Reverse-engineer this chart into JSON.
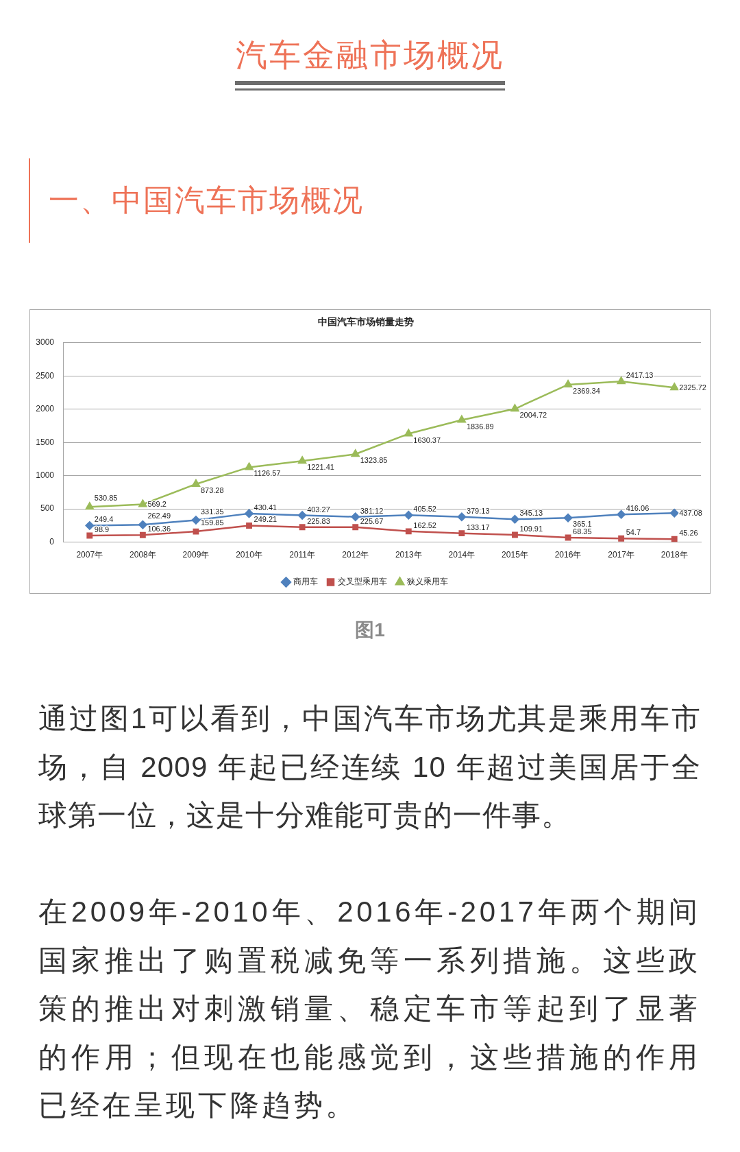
{
  "chart_data": {
    "type": "line",
    "title": "中国汽车市场销量走势",
    "categories": [
      "2007年",
      "2008年",
      "2009年",
      "2010年",
      "2011年",
      "2012年",
      "2013年",
      "2014年",
      "2015年",
      "2016年",
      "2017年",
      "2018年"
    ],
    "series": [
      {
        "name": "商用车",
        "color": "#4f81bd",
        "marker": "diamond",
        "values": [
          249.4,
          262.49,
          331.35,
          430.41,
          403.27,
          381.12,
          405.52,
          379.13,
          345.13,
          365.1,
          416.06,
          437.08
        ]
      },
      {
        "name": "交叉型乘用车",
        "color": "#c0504d",
        "marker": "square",
        "values": [
          98.9,
          106.36,
          159.85,
          249.21,
          225.83,
          225.67,
          162.52,
          133.17,
          109.91,
          68.35,
          54.7,
          45.26
        ]
      },
      {
        "name": "狭义乘用车",
        "color": "#9bbb59",
        "marker": "triangle",
        "values": [
          530.85,
          569.2,
          873.28,
          1126.57,
          1221.41,
          1323.85,
          1630.37,
          1836.89,
          2004.72,
          2369.34,
          2417.13,
          2325.72
        ]
      }
    ],
    "ylim": [
      0,
      3000
    ],
    "yticks": [
      0,
      500,
      1000,
      1500,
      2000,
      2500,
      3000
    ],
    "grid": "y",
    "legend": "bottom",
    "data_labels": true,
    "annotations": [
      "汽车金融市场概况",
      "一、中国汽车市场概况",
      "图1",
      "通过图1可以看到，中国汽车市场尤其是乘用车市场，自 2009 年起已经连续 10 年超过美国居于全球第一位，这是十分难能可贵的一件事。",
      "在2009年-2010年、2016年-2017年两个期间国家推出了购置税减免等一系列措施。这些政策的推出对刺激销量、稳定车市等起到了显著的作用；但现在也能感觉到，这些措施的作用已经在呈现下降趋势。"
    ]
  }
}
